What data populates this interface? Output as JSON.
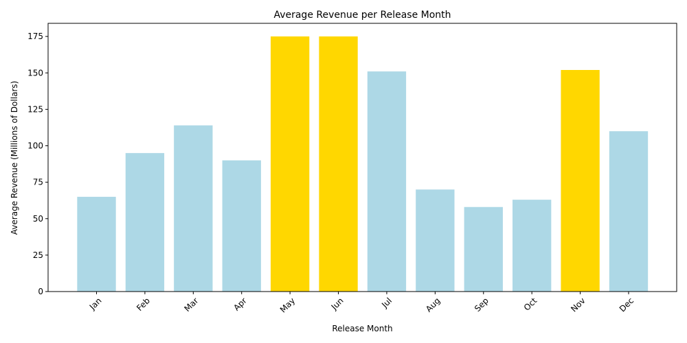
{
  "chart_data": {
    "type": "bar",
    "title": "Average Revenue per Release Month",
    "xlabel": "Release Month",
    "ylabel": "Average Revenue (Millions of Dollars)",
    "categories": [
      "Jan",
      "Feb",
      "Mar",
      "Apr",
      "May",
      "Jun",
      "Jul",
      "Aug",
      "Sep",
      "Oct",
      "Nov",
      "Dec"
    ],
    "values": [
      65,
      95,
      114,
      90,
      175,
      175,
      151,
      70,
      58,
      63,
      152,
      110
    ],
    "highlighted": [
      false,
      false,
      false,
      false,
      true,
      true,
      false,
      false,
      false,
      false,
      true,
      false
    ],
    "colors": {
      "default": "#add8e6",
      "highlight": "#ffd700"
    },
    "ylim": [
      0,
      184
    ],
    "yticks": [
      0,
      25,
      50,
      75,
      100,
      125,
      150,
      175
    ],
    "grid": false
  }
}
